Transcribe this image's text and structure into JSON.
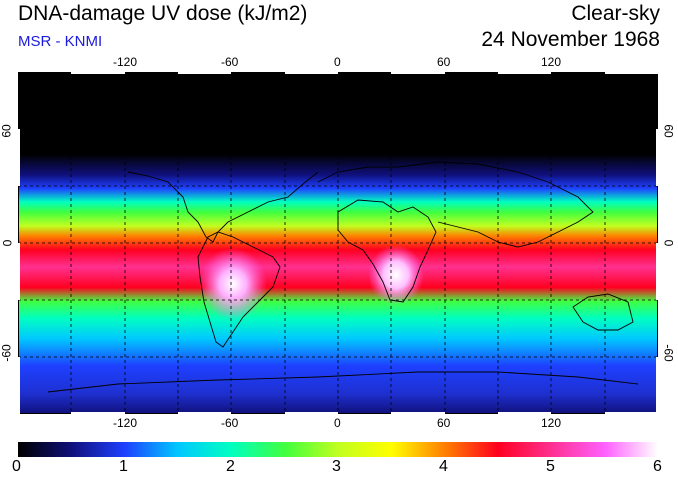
{
  "header": {
    "title": "DNA-damage UV dose (kJ/m2)",
    "subtitle": "MSR - KNMI",
    "condition": "Clear-sky",
    "date": "24 November 1968"
  },
  "map": {
    "lon_ticks": [
      "-120",
      "-60",
      "0",
      "60",
      "120"
    ],
    "lat_ticks": [
      "60",
      "0",
      "-60"
    ],
    "lon_range": [
      -180,
      180
    ],
    "lat_range": [
      -90,
      90
    ],
    "graticule_spacing_deg": 30,
    "graticule_style": "dashed"
  },
  "colorbar": {
    "labels": [
      "0",
      "1",
      "2",
      "3",
      "4",
      "5",
      "6"
    ],
    "range": [
      0,
      6
    ],
    "colors": [
      "#000000",
      "#10107a",
      "#1e40ff",
      "#00c8ff",
      "#00ffc0",
      "#40ff40",
      "#c0ff20",
      "#ffff00",
      "#ff8000",
      "#ff0020",
      "#ff3090",
      "#ff60ff",
      "#ffffff"
    ]
  }
}
